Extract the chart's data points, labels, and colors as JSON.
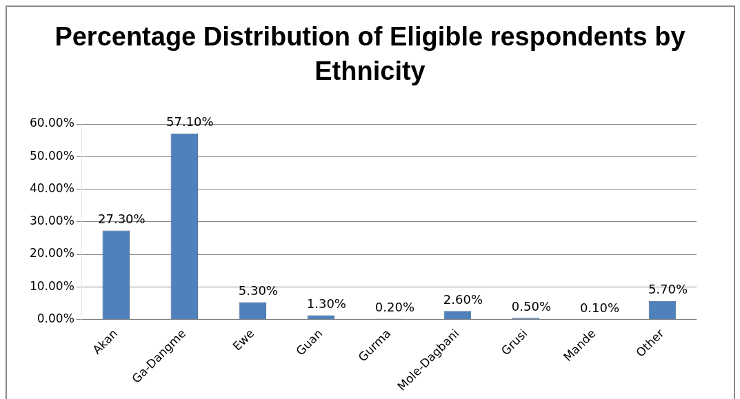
{
  "chart_data": {
    "type": "bar",
    "title": "Percentage Distribution of Eligible respondents by Ethnicity",
    "categories": [
      "Akan",
      "Ga-Dangme",
      "Ewe",
      "Guan",
      "Gurma",
      "Mole-Dagbani",
      "Grusi",
      "Mande",
      "Other"
    ],
    "values": [
      27.3,
      57.1,
      5.3,
      1.3,
      0.2,
      2.6,
      0.5,
      0.1,
      5.7
    ],
    "value_labels": [
      "27.30%",
      "57.10%",
      "5.30%",
      "1.30%",
      "0.20%",
      "2.60%",
      "0.50%",
      "0.10%",
      "5.70%"
    ],
    "color": "#4f81bd",
    "ylim": [
      0,
      60
    ],
    "yticks": [
      {
        "value": 0,
        "label": "0.00%"
      },
      {
        "value": 10,
        "label": "10.00%"
      },
      {
        "value": 20,
        "label": "20.00%"
      },
      {
        "value": 30,
        "label": "30.00%"
      },
      {
        "value": 40,
        "label": "40.00%"
      },
      {
        "value": 50,
        "label": "50.00%"
      },
      {
        "value": 60,
        "label": "60.00%"
      }
    ],
    "grid": "y"
  }
}
